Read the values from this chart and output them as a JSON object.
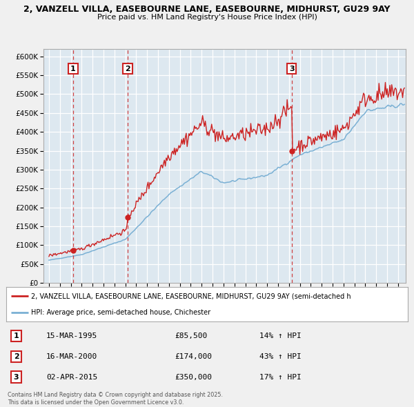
{
  "title1": "2, VANZELL VILLA, EASEBOURNE LANE, EASEBOURNE, MIDHURST, GU29 9AY",
  "title2": "Price paid vs. HM Land Registry's House Price Index (HPI)",
  "legend_line1": "2, VANZELL VILLA, EASEBOURNE LANE, EASEBOURNE, MIDHURST, GU29 9AY (semi-detached h",
  "legend_line2": "HPI: Average price, semi-detached house, Chichester",
  "sale_color": "#cc2222",
  "hpi_color": "#7ab0d4",
  "vline_color": "#cc2222",
  "bg_color": "#dde8f0",
  "grid_color": "#ffffff",
  "sales": [
    {
      "date": 1995.21,
      "price": 85500,
      "label": "1"
    },
    {
      "date": 2000.21,
      "price": 174000,
      "label": "2"
    },
    {
      "date": 2015.25,
      "price": 350000,
      "label": "3"
    }
  ],
  "sale_table": [
    {
      "num": "1",
      "date": "15-MAR-1995",
      "price": "£85,500",
      "change": "14% ↑ HPI"
    },
    {
      "num": "2",
      "date": "16-MAR-2000",
      "price": "£174,000",
      "change": "43% ↑ HPI"
    },
    {
      "num": "3",
      "date": "02-APR-2015",
      "price": "£350,000",
      "change": "17% ↑ HPI"
    }
  ],
  "footer": "Contains HM Land Registry data © Crown copyright and database right 2025.\nThis data is licensed under the Open Government Licence v3.0.",
  "ylim": [
    0,
    620000
  ],
  "yticks": [
    0,
    50000,
    100000,
    150000,
    200000,
    250000,
    300000,
    350000,
    400000,
    450000,
    500000,
    550000,
    600000
  ],
  "xlim_start": 1992.5,
  "xlim_end": 2025.7
}
